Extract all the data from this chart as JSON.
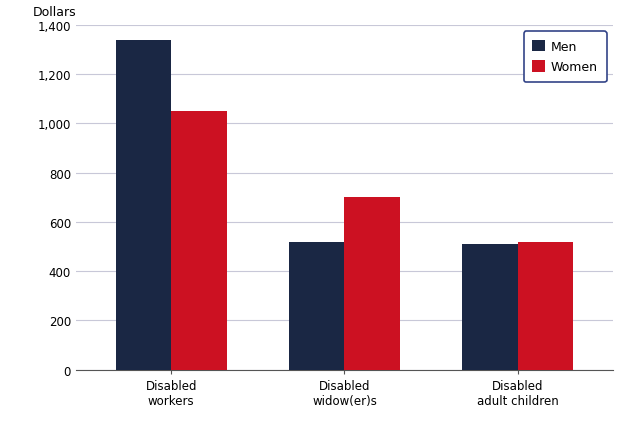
{
  "categories": [
    "Disabled\nworkers",
    "Disabled\nwidow(er)s",
    "Disabled\nadult children"
  ],
  "men_values": [
    1340,
    520,
    510
  ],
  "women_values": [
    1050,
    700,
    520
  ],
  "men_color": "#1a2744",
  "women_color": "#cc1122",
  "men_label": "Men",
  "women_label": "Women",
  "ylabel": "Dollars",
  "ylim": [
    0,
    1400
  ],
  "yticks": [
    0,
    200,
    400,
    600,
    800,
    1000,
    1200,
    1400
  ],
  "ytick_labels": [
    "0",
    "200",
    "400",
    "600",
    "800",
    "1,000",
    "1,200",
    "1,400"
  ],
  "bar_width": 0.32,
  "background_color": "#ffffff",
  "grid_color": "#c8c8d8",
  "legend_fontsize": 9,
  "axis_fontsize": 8.5,
  "ylabel_fontsize": 9,
  "legend_edge_color": "#334488"
}
